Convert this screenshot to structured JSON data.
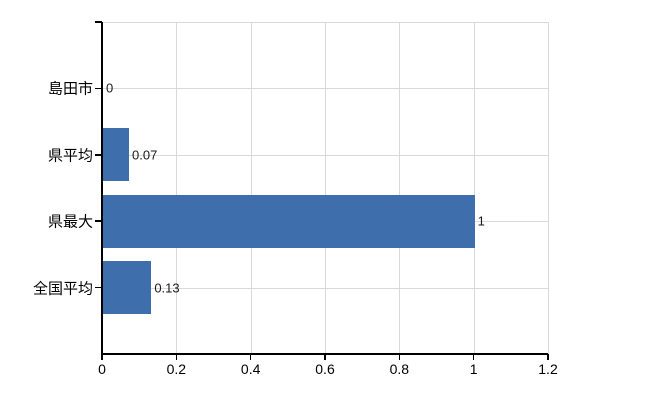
{
  "chart_data": {
    "type": "bar",
    "orientation": "horizontal",
    "title": "",
    "xlabel": "",
    "ylabel": "",
    "categories": [
      "島田市",
      "県平均",
      "県最大",
      "全国平均"
    ],
    "values": [
      0,
      0.07,
      1,
      0.13
    ],
    "value_labels": [
      "0",
      "0.07",
      "1",
      "0.13"
    ],
    "xlim": [
      0,
      1.2
    ],
    "xticks": [
      0,
      0.2,
      0.4,
      0.6,
      0.8,
      1,
      1.2
    ],
    "xtick_labels": [
      "0",
      "0.2",
      "0.4",
      "0.6",
      "0.8",
      "1",
      "1.2"
    ],
    "grid": true,
    "legend": false,
    "colors": {
      "bar": "#3e6fac",
      "grid": "#d9d9d9",
      "axis": "#000000",
      "text": "#000000",
      "background": "#ffffff"
    }
  }
}
